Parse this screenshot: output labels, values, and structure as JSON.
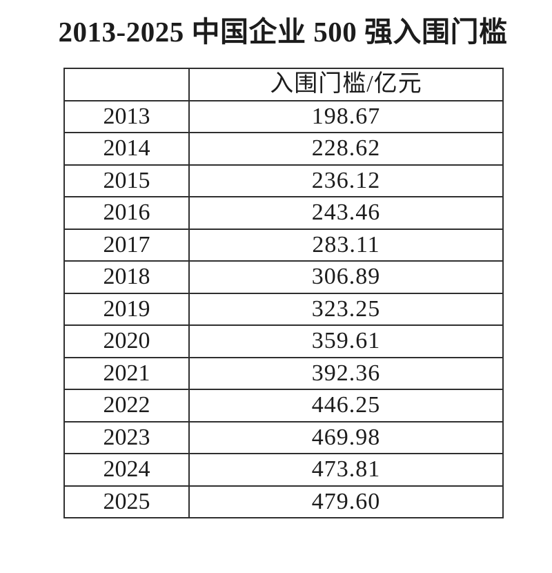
{
  "title": "2013-2025 中国企业 500 强入围门槛",
  "table": {
    "header": {
      "year_label": "",
      "value_label": "入围门槛/亿元"
    },
    "rows": [
      {
        "year": "2013",
        "value": "198.67"
      },
      {
        "year": "2014",
        "value": "228.62"
      },
      {
        "year": "2015",
        "value": "236.12"
      },
      {
        "year": "2016",
        "value": "243.46"
      },
      {
        "year": "2017",
        "value": "283.11"
      },
      {
        "year": "2018",
        "value": "306.89"
      },
      {
        "year": "2019",
        "value": "323.25"
      },
      {
        "year": "2020",
        "value": "359.61"
      },
      {
        "year": "2021",
        "value": "392.36"
      },
      {
        "year": "2022",
        "value": "446.25"
      },
      {
        "year": "2023",
        "value": "469.98"
      },
      {
        "year": "2024",
        "value": "473.81"
      },
      {
        "year": "2025",
        "value": "479.60"
      }
    ]
  },
  "chart_data": {
    "type": "table",
    "title": "2013-2025 中国企业 500 强入围门槛",
    "value_label": "入围门槛/亿元",
    "categories": [
      "2013",
      "2014",
      "2015",
      "2016",
      "2017",
      "2018",
      "2019",
      "2020",
      "2021",
      "2022",
      "2023",
      "2024",
      "2025"
    ],
    "values": [
      198.67,
      228.62,
      236.12,
      243.46,
      283.11,
      306.89,
      323.25,
      359.61,
      392.36,
      446.25,
      469.98,
      473.81,
      479.6
    ]
  },
  "colors": {
    "background": "#ffffff",
    "text": "#1c1c1c",
    "border": "#2e2e2e"
  }
}
